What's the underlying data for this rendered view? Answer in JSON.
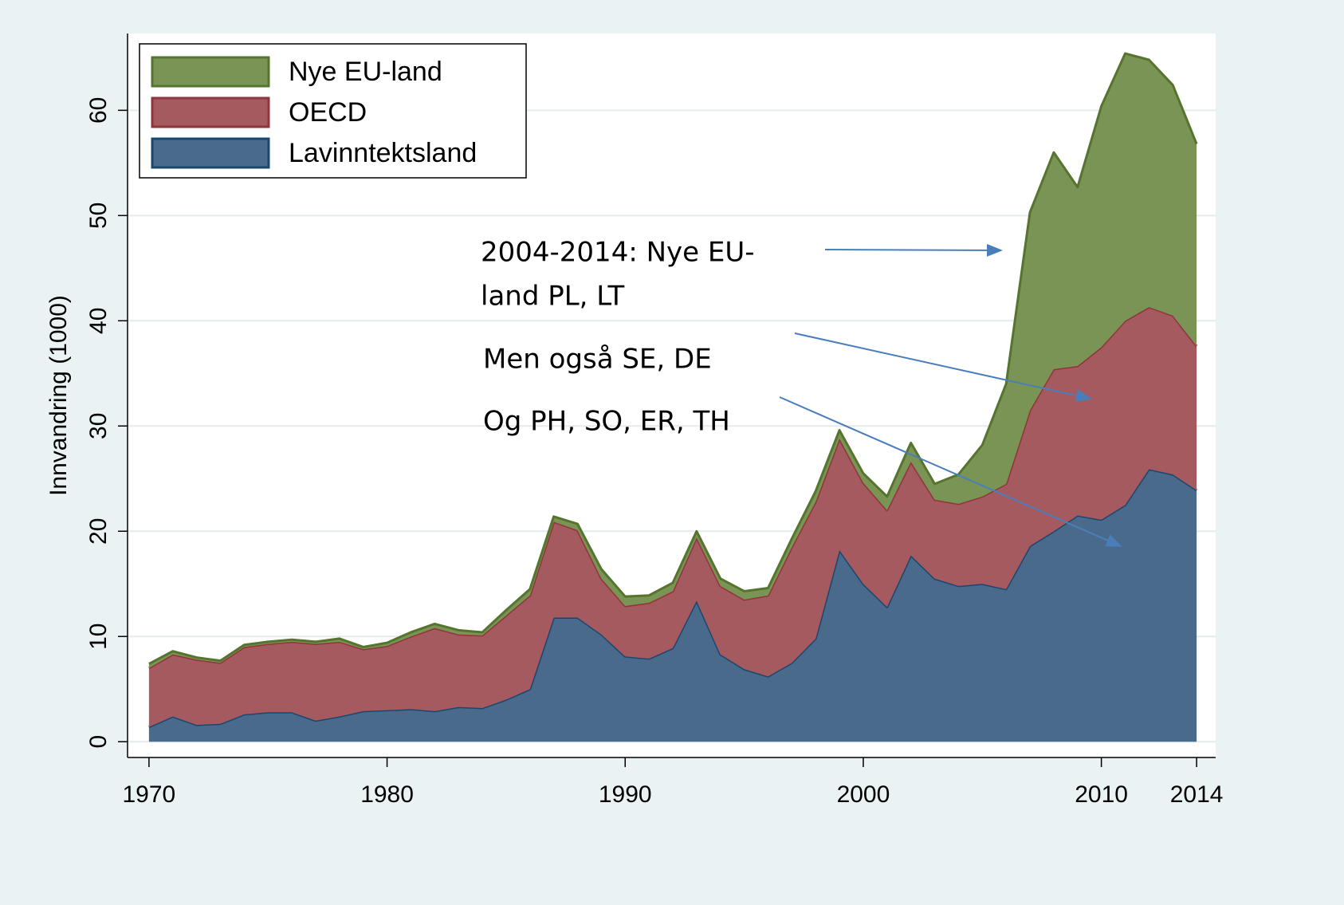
{
  "chart_data": {
    "type": "stacked-area",
    "y_label": "Innvandring (1000)",
    "x": [
      1970,
      1971,
      1972,
      1973,
      1974,
      1975,
      1976,
      1977,
      1978,
      1979,
      1980,
      1981,
      1982,
      1983,
      1984,
      1985,
      1986,
      1987,
      1988,
      1989,
      1990,
      1991,
      1992,
      1993,
      1994,
      1995,
      1996,
      1997,
      1998,
      1999,
      2000,
      2001,
      2002,
      2003,
      2004,
      2005,
      2006,
      2007,
      2008,
      2009,
      2010,
      2011,
      2012,
      2013,
      2014
    ],
    "series": [
      {
        "name": "Lavinntektsland",
        "color": "#4a6a8c",
        "line_color": "#1a476f",
        "values": [
          1.4,
          2.4,
          1.6,
          1.7,
          2.6,
          2.8,
          2.8,
          2.0,
          2.4,
          2.9,
          3.0,
          3.1,
          2.9,
          3.3,
          3.2,
          4.0,
          5.0,
          11.8,
          11.8,
          10.2,
          8.1,
          7.9,
          8.9,
          13.4,
          8.3,
          6.9,
          6.2,
          7.5,
          9.8,
          18.2,
          15.0,
          12.8,
          17.7,
          15.5,
          14.8,
          15.0,
          14.5,
          18.6,
          20.0,
          21.5,
          21.1,
          22.5,
          25.9,
          25.4,
          23.9
        ]
      },
      {
        "name": "OECD",
        "color": "#a55a5f",
        "line_color": "#90353b",
        "values": [
          5.6,
          5.9,
          6.2,
          5.8,
          6.4,
          6.5,
          6.7,
          7.3,
          7.1,
          5.9,
          6.1,
          6.9,
          7.9,
          6.9,
          6.9,
          8.0,
          8.9,
          9.1,
          8.3,
          5.3,
          4.8,
          5.3,
          5.4,
          6.0,
          6.5,
          6.6,
          7.7,
          11.0,
          13.0,
          10.6,
          9.6,
          9.2,
          8.9,
          7.5,
          7.8,
          8.3,
          10.0,
          12.9,
          15.4,
          14.2,
          16.4,
          17.5,
          15.4,
          15.1,
          13.7
        ]
      },
      {
        "name": "Nye EU-land",
        "color": "#7a9455",
        "line_color": "#55752f",
        "values": [
          0.4,
          0.3,
          0.2,
          0.2,
          0.2,
          0.2,
          0.2,
          0.2,
          0.3,
          0.2,
          0.3,
          0.4,
          0.4,
          0.4,
          0.3,
          0.5,
          0.6,
          0.5,
          0.6,
          0.9,
          0.9,
          0.7,
          0.8,
          0.6,
          0.7,
          0.8,
          0.7,
          0.8,
          1.0,
          0.8,
          0.9,
          1.3,
          1.8,
          1.5,
          2.8,
          4.9,
          9.5,
          18.8,
          20.6,
          17.0,
          22.9,
          25.4,
          23.5,
          21.9,
          19.2
        ]
      }
    ],
    "xlim": [
      1969.1,
      2014.8
    ],
    "xticks": [
      1970,
      1980,
      1990,
      2000,
      2010,
      2014
    ],
    "ylim": [
      -1.5,
      67.3
    ],
    "yticks": [
      0,
      10,
      20,
      30,
      40,
      50,
      60
    ],
    "grid": true,
    "legend_position": "upper-left",
    "annotations": [
      [
        "2004-2014: Nye EU-",
        "land PL, LT"
      ],
      [
        "Men også SE, DE"
      ],
      [
        "Og PH, SO, ER, TH"
      ]
    ]
  }
}
